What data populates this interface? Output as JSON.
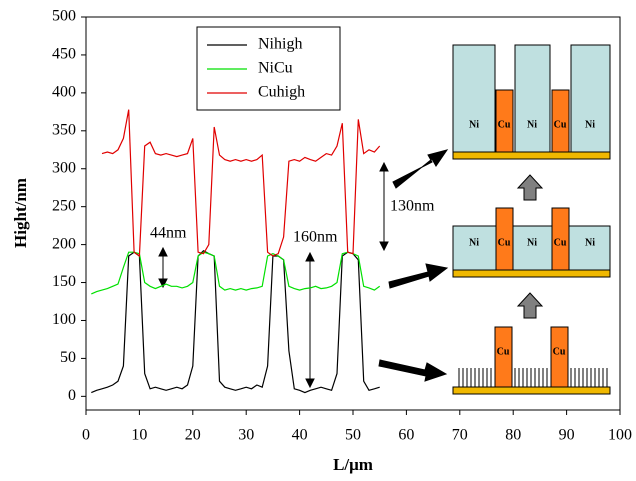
{
  "chart_data": {
    "type": "line",
    "xlabel": "L/μm",
    "ylabel": "Hight/nm",
    "xlim": [
      0,
      100
    ],
    "ylim": [
      -18,
      500
    ],
    "xticks": [
      0,
      10,
      20,
      30,
      40,
      50,
      60,
      70,
      80,
      90,
      100
    ],
    "yticks": [
      0,
      50,
      100,
      150,
      200,
      250,
      300,
      350,
      400,
      450,
      500
    ],
    "legend": "upper-left",
    "x": [
      1,
      2,
      3,
      4,
      5,
      6,
      7,
      8,
      9,
      10,
      11,
      12,
      13,
      14,
      15,
      16,
      17,
      18,
      19,
      20,
      21,
      22,
      23,
      24,
      25,
      26,
      27,
      28,
      29,
      30,
      31,
      32,
      33,
      34,
      35,
      36,
      37,
      38,
      39,
      40,
      41,
      42,
      43,
      44,
      45,
      46,
      47,
      48,
      49,
      50,
      51,
      52,
      53,
      54,
      55
    ],
    "series": [
      {
        "name": "Nihigh",
        "color": "#000000",
        "values": [
          5,
          8,
          10,
          12,
          15,
          20,
          40,
          185,
          190,
          185,
          30,
          10,
          12,
          10,
          8,
          10,
          12,
          10,
          15,
          40,
          185,
          192,
          188,
          185,
          20,
          12,
          10,
          8,
          10,
          12,
          10,
          15,
          12,
          40,
          185,
          185,
          180,
          60,
          10,
          8,
          5,
          8,
          10,
          12,
          10,
          8,
          30,
          185,
          190,
          188,
          180,
          20,
          8,
          10,
          12
        ]
      },
      {
        "name": "NiCu",
        "color": "#00e000",
        "values": [
          135,
          138,
          140,
          142,
          145,
          148,
          170,
          190,
          190,
          188,
          150,
          145,
          142,
          145,
          148,
          145,
          145,
          143,
          145,
          150,
          185,
          190,
          188,
          185,
          145,
          140,
          142,
          140,
          142,
          140,
          142,
          143,
          145,
          185,
          188,
          185,
          180,
          145,
          142,
          140,
          142,
          143,
          145,
          142,
          143,
          145,
          150,
          188,
          190,
          188,
          185,
          145,
          143,
          140,
          145
        ]
      },
      {
        "name": "Cuhigh",
        "color": "#e00000",
        "values": [
          null,
          null,
          320,
          322,
          320,
          325,
          340,
          378,
          190,
          185,
          330,
          335,
          320,
          318,
          320,
          318,
          316,
          318,
          320,
          340,
          190,
          188,
          200,
          355,
          318,
          312,
          310,
          312,
          310,
          312,
          310,
          312,
          318,
          190,
          185,
          188,
          210,
          310,
          312,
          310,
          315,
          312,
          310,
          315,
          320,
          318,
          330,
          360,
          190,
          188,
          365,
          320,
          325,
          322,
          330
        ]
      }
    ],
    "annotations": [
      "44nm",
      "160nm",
      "130nm"
    ],
    "schematic_labels": {
      "ni": "Ni",
      "cu": "Cu"
    }
  }
}
